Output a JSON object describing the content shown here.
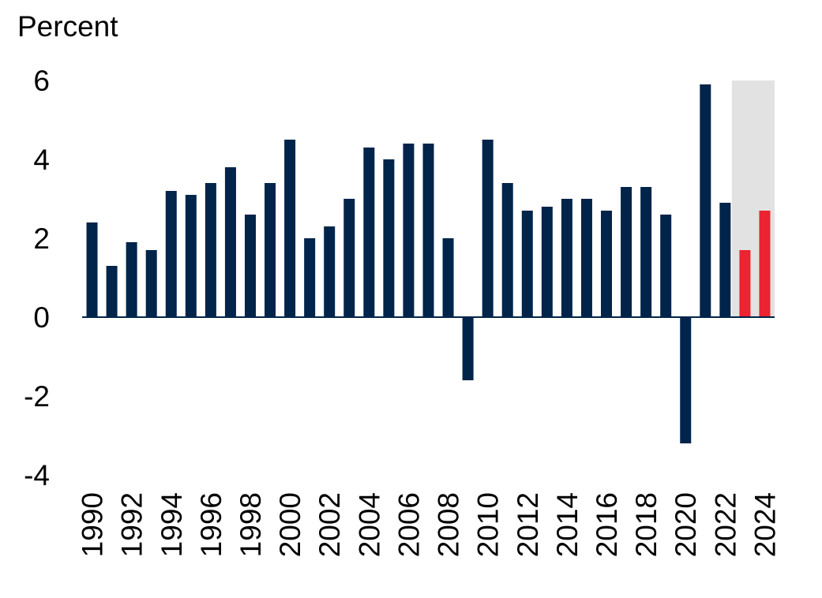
{
  "chart_data": {
    "type": "bar",
    "ylabel": "Percent",
    "ylim": [
      -4,
      6
    ],
    "yticks": [
      6,
      4,
      2,
      0,
      -2,
      -4
    ],
    "xtick_labels": [
      "1990",
      "1992",
      "1994",
      "1996",
      "1998",
      "2000",
      "2002",
      "2004",
      "2006",
      "2008",
      "2010",
      "2012",
      "2014",
      "2016",
      "2018",
      "2020",
      "2022",
      "2024"
    ],
    "categories": [
      "1990",
      "1991",
      "1992",
      "1993",
      "1994",
      "1995",
      "1996",
      "1997",
      "1998",
      "1999",
      "2000",
      "2001",
      "2002",
      "2003",
      "2004",
      "2005",
      "2006",
      "2007",
      "2008",
      "2009",
      "2010",
      "2011",
      "2012",
      "2013",
      "2014",
      "2015",
      "2016",
      "2017",
      "2018",
      "2019",
      "2020",
      "2021",
      "2022",
      "2023",
      "2024"
    ],
    "values": [
      2.4,
      1.3,
      1.9,
      1.7,
      3.2,
      3.1,
      3.4,
      3.8,
      2.6,
      3.4,
      4.5,
      2.0,
      2.3,
      3.0,
      4.3,
      4.0,
      4.4,
      4.4,
      2.0,
      -1.6,
      4.5,
      3.4,
      2.7,
      2.8,
      3.0,
      3.0,
      2.7,
      3.3,
      3.3,
      2.6,
      -3.2,
      5.9,
      2.9,
      1.7,
      2.7
    ],
    "highlighted_categories": [
      "2023",
      "2024"
    ],
    "shaded_region": [
      "2023",
      "2024"
    ],
    "grid": false,
    "colors": {
      "bar": "#00244a",
      "highlight_bar": "#ec2330",
      "shade": "#e2e2e2",
      "axis": "#00244a"
    }
  }
}
